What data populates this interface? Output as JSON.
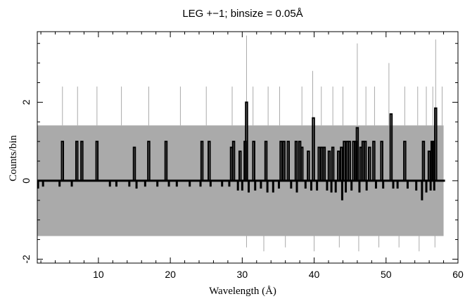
{
  "chart_data": {
    "type": "line",
    "title": "LEG +−1; binsize = 0.05Å",
    "xlabel": "Wavelength (Å)",
    "ylabel": "Counts/bin",
    "xlim": [
      1.5,
      60
    ],
    "ylim": [
      -2.1,
      3.8
    ],
    "x_ticks": [
      10,
      20,
      30,
      40,
      50,
      60
    ],
    "y_ticks": [
      -2,
      0,
      2
    ],
    "grid": false,
    "series": [
      {
        "style": "gray error band",
        "color": "#aaaaaa",
        "upper": 1.41,
        "lower": -1.41,
        "error_spikes_up": [
          [
            5.0,
            2.4
          ],
          [
            7.1,
            2.4
          ],
          [
            9.8,
            2.4
          ],
          [
            13.2,
            2.4
          ],
          [
            17.0,
            2.4
          ],
          [
            21.4,
            2.4
          ],
          [
            25.0,
            2.4
          ],
          [
            28.6,
            2.4
          ],
          [
            30.6,
            3.7
          ],
          [
            31.5,
            2.4
          ],
          [
            33.6,
            2.4
          ],
          [
            35.2,
            2.4
          ],
          [
            38.3,
            2.4
          ],
          [
            39.8,
            2.8
          ],
          [
            41.0,
            2.4
          ],
          [
            42.6,
            2.4
          ],
          [
            44.0,
            2.4
          ],
          [
            46.0,
            3.5
          ],
          [
            47.2,
            2.4
          ],
          [
            48.4,
            2.4
          ],
          [
            50.4,
            3.0
          ],
          [
            52.6,
            2.4
          ],
          [
            54.4,
            2.4
          ],
          [
            55.6,
            2.4
          ],
          [
            56.5,
            2.4
          ],
          [
            56.9,
            3.6
          ],
          [
            57.8,
            2.4
          ]
        ],
        "error_spikes_down": [
          [
            30.6,
            -1.7
          ],
          [
            33.0,
            -1.8
          ],
          [
            36.0,
            -1.7
          ],
          [
            40.0,
            -1.8
          ],
          [
            43.5,
            -1.7
          ],
          [
            46.2,
            -1.8
          ],
          [
            49.0,
            -1.7
          ],
          [
            51.8,
            -1.7
          ],
          [
            54.6,
            -1.8
          ],
          [
            56.8,
            -1.7
          ]
        ]
      },
      {
        "style": "black histogram",
        "color": "#000000",
        "baseline": 0,
        "peaks": [
          [
            5.0,
            1.0
          ],
          [
            7.0,
            1.0
          ],
          [
            7.7,
            1.0
          ],
          [
            9.8,
            1.0
          ],
          [
            15.0,
            0.85
          ],
          [
            17.0,
            1.0
          ],
          [
            19.4,
            1.0
          ],
          [
            24.4,
            1.0
          ],
          [
            25.4,
            1.0
          ],
          [
            28.5,
            0.85
          ],
          [
            28.8,
            1.0
          ],
          [
            29.7,
            0.75
          ],
          [
            30.4,
            1.0
          ],
          [
            30.6,
            2.0
          ],
          [
            31.6,
            1.0
          ],
          [
            33.3,
            1.0
          ],
          [
            35.4,
            1.0
          ],
          [
            35.8,
            1.0
          ],
          [
            36.4,
            1.0
          ],
          [
            37.5,
            1.0
          ],
          [
            38.0,
            1.0
          ],
          [
            38.3,
            0.85
          ],
          [
            39.2,
            0.75
          ],
          [
            39.9,
            1.6
          ],
          [
            40.7,
            0.85
          ],
          [
            41.1,
            0.85
          ],
          [
            41.4,
            0.85
          ],
          [
            42.1,
            0.75
          ],
          [
            42.6,
            0.85
          ],
          [
            43.4,
            0.75
          ],
          [
            43.8,
            0.85
          ],
          [
            44.2,
            1.0
          ],
          [
            44.6,
            1.0
          ],
          [
            44.9,
            1.0
          ],
          [
            45.5,
            1.0
          ],
          [
            45.8,
            1.0
          ],
          [
            46.0,
            1.35
          ],
          [
            46.5,
            0.85
          ],
          [
            46.8,
            1.0
          ],
          [
            47.1,
            1.0
          ],
          [
            47.7,
            0.85
          ],
          [
            48.3,
            1.0
          ],
          [
            49.4,
            1.0
          ],
          [
            50.7,
            1.7
          ],
          [
            52.6,
            1.0
          ],
          [
            55.2,
            1.0
          ],
          [
            56.0,
            0.75
          ],
          [
            56.4,
            1.0
          ],
          [
            56.6,
            1.0
          ],
          [
            56.9,
            1.85
          ]
        ],
        "dips": [
          [
            1.6,
            -0.2
          ],
          [
            2.3,
            -0.15
          ],
          [
            4.6,
            -0.15
          ],
          [
            6.3,
            -0.15
          ],
          [
            11.6,
            -0.15
          ],
          [
            12.5,
            -0.15
          ],
          [
            14.3,
            -0.15
          ],
          [
            15.3,
            -0.2
          ],
          [
            16.5,
            -0.15
          ],
          [
            18.2,
            -0.15
          ],
          [
            19.8,
            -0.15
          ],
          [
            20.9,
            -0.15
          ],
          [
            22.7,
            -0.15
          ],
          [
            24.2,
            -0.15
          ],
          [
            25.6,
            -0.15
          ],
          [
            27.2,
            -0.15
          ],
          [
            28.2,
            -0.15
          ],
          [
            29.4,
            -0.25
          ],
          [
            30.0,
            -0.25
          ],
          [
            30.9,
            -0.3
          ],
          [
            31.8,
            -0.25
          ],
          [
            32.6,
            -0.2
          ],
          [
            33.5,
            -0.3
          ],
          [
            34.3,
            -0.3
          ],
          [
            35.1,
            -0.2
          ],
          [
            36.8,
            -0.2
          ],
          [
            37.6,
            -0.3
          ],
          [
            38.8,
            -0.2
          ],
          [
            39.6,
            -0.25
          ],
          [
            40.4,
            -0.25
          ],
          [
            41.8,
            -0.25
          ],
          [
            42.4,
            -0.3
          ],
          [
            43.0,
            -0.3
          ],
          [
            43.9,
            -0.5
          ],
          [
            44.4,
            -0.3
          ],
          [
            45.2,
            -0.25
          ],
          [
            46.3,
            -0.3
          ],
          [
            47.3,
            -0.25
          ],
          [
            48.6,
            -0.2
          ],
          [
            49.6,
            -0.2
          ],
          [
            51.0,
            -0.2
          ],
          [
            51.6,
            -0.2
          ],
          [
            53.0,
            -0.2
          ],
          [
            54.2,
            -0.25
          ],
          [
            55.0,
            -0.5
          ],
          [
            55.6,
            -0.3
          ],
          [
            56.2,
            -0.25
          ],
          [
            56.7,
            -0.25
          ]
        ]
      }
    ]
  }
}
